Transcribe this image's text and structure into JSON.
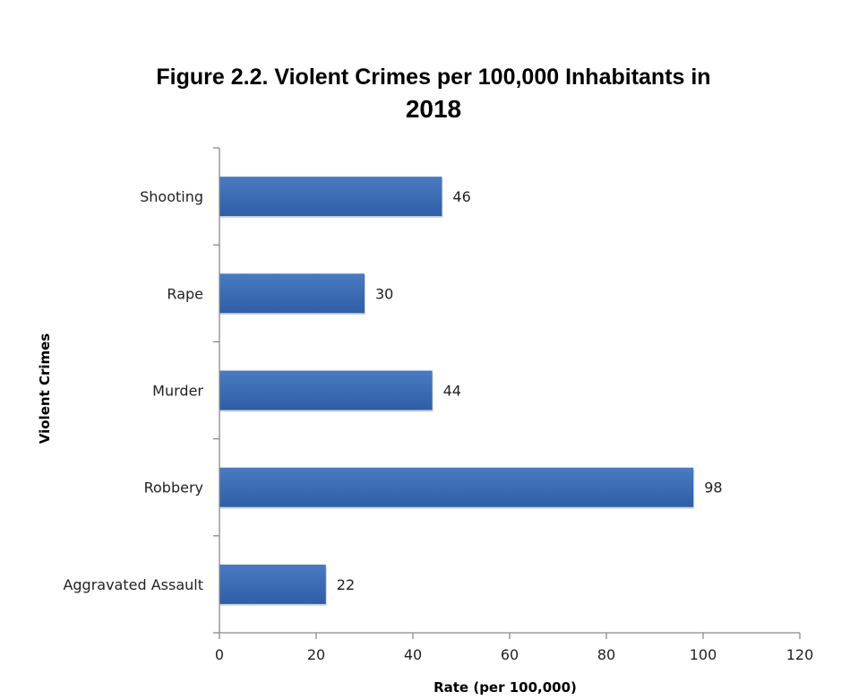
{
  "chart_data": {
    "type": "bar",
    "orientation": "horizontal",
    "title_lines": [
      "Figure 2.2. Violent Crimes per 100,000 Inhabitants in",
      "2018"
    ],
    "categories": [
      "Shooting",
      "Rape",
      "Murder",
      "Robbery",
      "Aggravated Assault"
    ],
    "values": [
      46,
      30,
      44,
      98,
      22
    ],
    "data_labels": [
      "46",
      "30",
      "44",
      "98",
      "22"
    ],
    "xlabel": "Rate (per 100,000)",
    "ylabel": "Violent Crimes",
    "xlim": [
      0,
      120
    ],
    "x_ticks": [
      0,
      20,
      40,
      60,
      80,
      100,
      120
    ],
    "grid": false,
    "legend": "none",
    "bar_color": "#4a7ac2",
    "bar_color_dark": "#2e5ea6"
  }
}
